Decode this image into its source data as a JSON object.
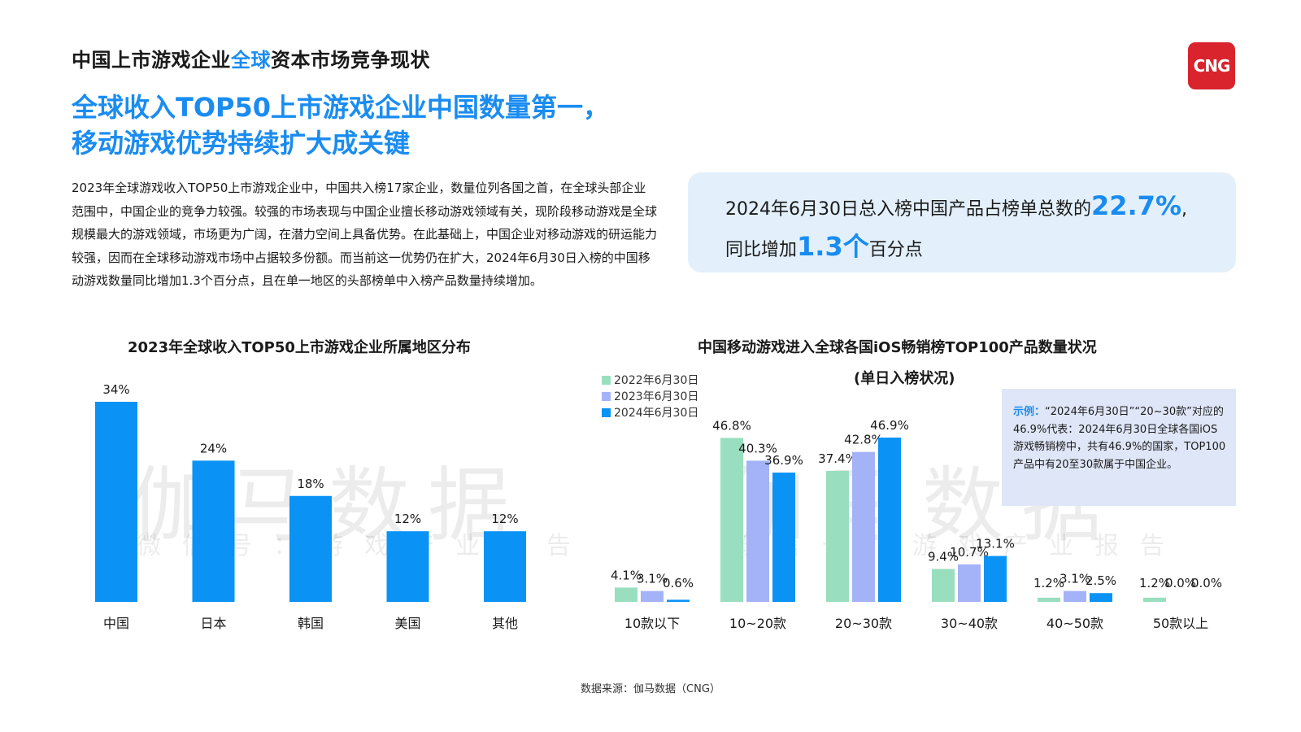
{
  "header": {
    "title_before": "中国上市游戏企业",
    "title_highlight": "全球",
    "title_after": "资本市场竞争现状",
    "logo_text": "CNG"
  },
  "headline": {
    "line1": "全球收入TOP50上市游戏企业中国数量第一，",
    "line2": "移动游戏优势持续扩大成关键"
  },
  "paragraph": "2023年全球游戏收入TOP50上市游戏企业中，中国共入榜17家企业，数量位列各国之首，在全球头部企业范围中，中国企业的竞争力较强。较强的市场表现与中国企业擅长移动游戏领域有关，现阶段移动游戏是全球规模最大的游戏领域，市场更为广阔，在潜力空间上具备优势。在此基础上，中国企业对移动游戏的研运能力较强，因而在全球移动游戏市场中占据较多份额。而当前这一优势仍在扩大，2024年6月30日入榜的中国移动游戏数量同比增加1.3个百分点，且在单一地区的头部榜单中入榜产品数量持续增加。",
  "callout": {
    "line1_text": "2024年6月30日总入榜中国产品占榜单总数的",
    "line1_big": "22.7%",
    "line1_tail": ",",
    "line2_text": "同比增加",
    "line2_big": "1.3个",
    "line2_tail": "百分点"
  },
  "note": {
    "label": "示例：",
    "text": "“2024年6月30日”“20~30款”对应的46.9%代表：2024年6月30日全球各国iOS 游戏畅销榜中，共有46.9%的国家，TOP100产品中有20至30款属于中国企业。"
  },
  "watermark": {
    "big": "伽马数据",
    "small": "微信号：游戏产业报告"
  },
  "source": "数据来源：伽马数据（CNG）",
  "colors": {
    "accent": "#1a8cf0",
    "bar_blue": "#0a93f5",
    "series_2022": "#99dfbf",
    "series_2023": "#a4b3f8",
    "series_2024": "#0a93f5",
    "logo_red": "#d9232d"
  },
  "chart_data": [
    {
      "type": "bar",
      "title": "2023年全球收入TOP50上市游戏企业所属地区分布",
      "categories": [
        "中国",
        "日本",
        "韩国",
        "美国",
        "其他"
      ],
      "values": [
        34,
        24,
        18,
        12,
        12
      ],
      "value_labels": [
        "34%",
        "24%",
        "18%",
        "12%",
        "12%"
      ],
      "ylim": [
        0,
        34
      ],
      "grid": false,
      "legend": "none"
    },
    {
      "type": "bar",
      "title": "中国移动游戏进入全球各国iOS畅销榜TOP100产品数量状况",
      "subtitle": "(单日入榜状况)",
      "categories": [
        "10款以下",
        "10~20款",
        "20~30款",
        "30~40款",
        "40~50款",
        "50款以上"
      ],
      "series": [
        {
          "name": "2022年6月30日",
          "values": [
            4.1,
            46.8,
            37.4,
            9.4,
            1.2,
            1.2
          ],
          "labels": [
            "4.1%",
            "46.8%",
            "37.4%",
            "9.4%",
            "1.2%",
            "1.2%"
          ]
        },
        {
          "name": "2023年6月30日",
          "values": [
            3.1,
            40.3,
            42.8,
            10.7,
            3.1,
            0.0
          ],
          "labels": [
            "3.1%",
            "40.3%",
            "42.8%",
            "10.7%",
            "3.1%",
            "0.0%"
          ]
        },
        {
          "name": "2024年6月30日",
          "values": [
            0.6,
            36.9,
            46.9,
            13.1,
            2.5,
            0.0
          ],
          "labels": [
            "0.6%",
            "36.9%",
            "46.9%",
            "13.1%",
            "2.5%",
            "0.0%"
          ]
        }
      ],
      "ylim": [
        0,
        46.9
      ],
      "grid": false,
      "legend": "top-left"
    }
  ]
}
